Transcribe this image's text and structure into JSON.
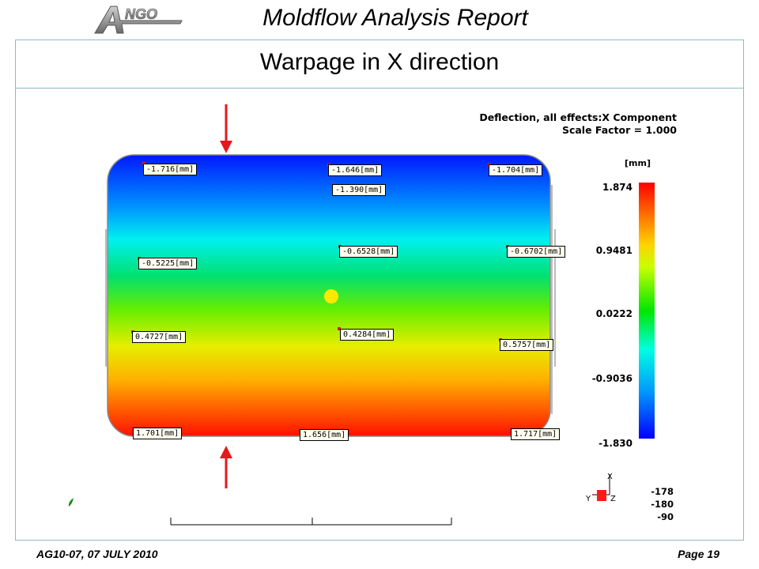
{
  "header": {
    "logo_text": "ANGO",
    "report_title": "Moldflow Analysis Report"
  },
  "slide": {
    "title": "Warpage in X direction"
  },
  "plot": {
    "legend_title": "Deflection, all effects:X Component",
    "legend_scale": "Scale Factor = 1.000",
    "unit": "[mm]",
    "colorbar_ticks": [
      "1.874",
      "0.9481",
      "0.0222",
      "-0.9036",
      "-1.830"
    ],
    "colorbar_colors": {
      "max": "#ff0000",
      "mid": "#00e600",
      "min": "#0000ff"
    },
    "labels": [
      "-1.716[mm]",
      "-1.646[mm]",
      "-1.704[mm]",
      "-1.390[mm]",
      "-0.6528[mm]",
      "-0.6702[mm]",
      "-0.5225[mm]",
      "0.4727[mm]",
      "0.4284[mm]",
      "0.5757[mm]",
      "1.701[mm]",
      "1.656[mm]",
      "1.717[mm]"
    ],
    "triad": {
      "x": "X",
      "y": "Y",
      "z": "Z"
    },
    "rotation": [
      "-178",
      "-180",
      "-90"
    ],
    "arrow_color": "#e31a1a"
  },
  "footer": {
    "left": "AG10-07, 07 JULY 2010",
    "right": "Page 19"
  }
}
